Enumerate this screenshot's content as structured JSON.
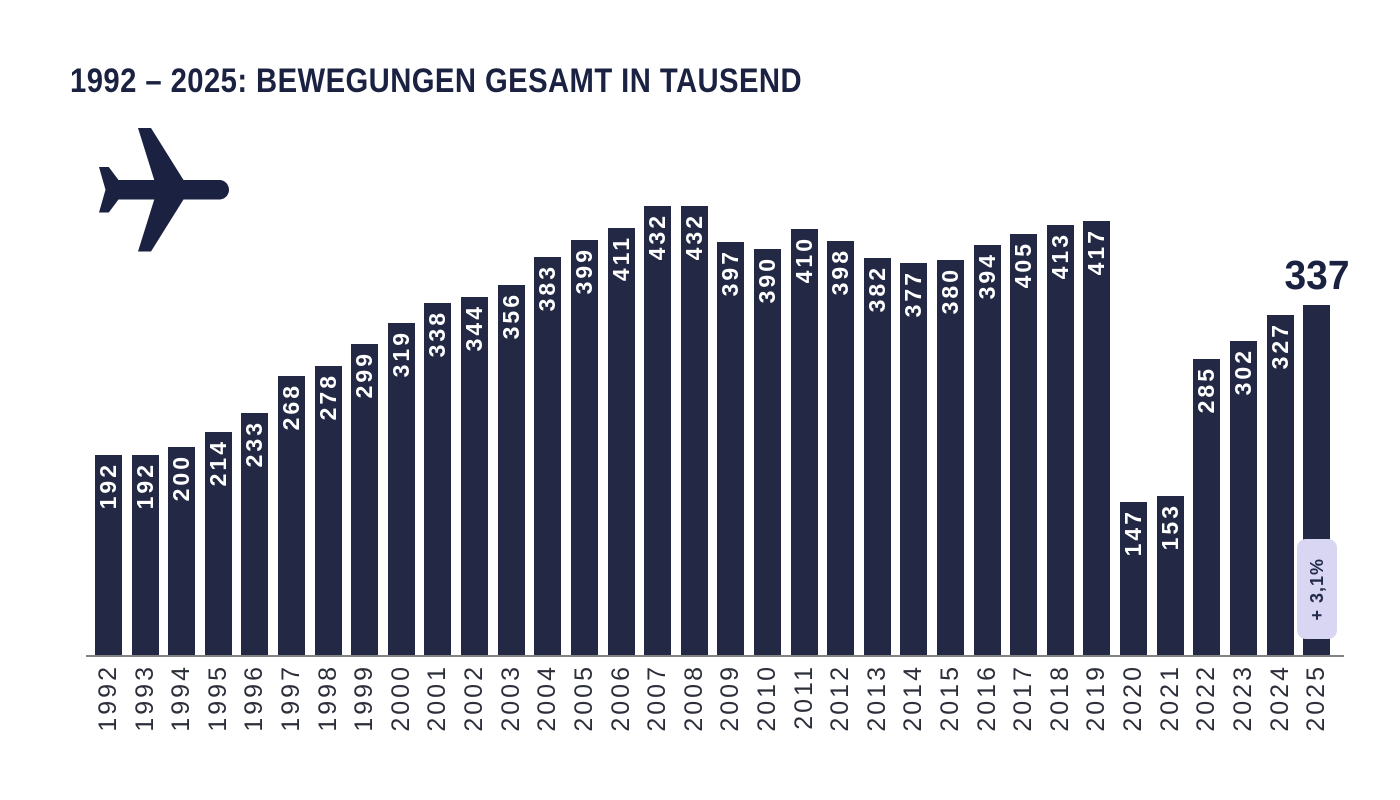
{
  "chart_data": {
    "type": "bar",
    "title": "1992 – 2025: BEWEGUNGEN GESAMT IN TAUSEND",
    "categories": [
      "1992",
      "1993",
      "1994",
      "1995",
      "1996",
      "1997",
      "1998",
      "1999",
      "2000",
      "2001",
      "2002",
      "2003",
      "2004",
      "2005",
      "2006",
      "2007",
      "2008",
      "2009",
      "2010",
      "2011",
      "2012",
      "2013",
      "2014",
      "2015",
      "2016",
      "2017",
      "2018",
      "2019",
      "2020",
      "2021",
      "2022",
      "2023",
      "2024",
      "2025"
    ],
    "values": [
      192,
      192,
      200,
      214,
      233,
      268,
      278,
      299,
      319,
      338,
      344,
      356,
      383,
      399,
      411,
      432,
      432,
      397,
      390,
      410,
      398,
      382,
      377,
      380,
      394,
      405,
      413,
      417,
      147,
      153,
      285,
      302,
      327,
      337
    ],
    "ylim": [
      0,
      450
    ],
    "grid": false,
    "legend": false,
    "x_tick_rotation": "vertical",
    "bar_color": "#232945",
    "value_label_color": "#ffffff",
    "axis_line_color": "#828282",
    "title_color": "#1b2141",
    "highlight": {
      "category": "2025",
      "value_label": "337",
      "badge_label": "+ 3,1%",
      "badge_bg": "#d8d6f3",
      "badge_text_color": "#232a4a"
    }
  }
}
